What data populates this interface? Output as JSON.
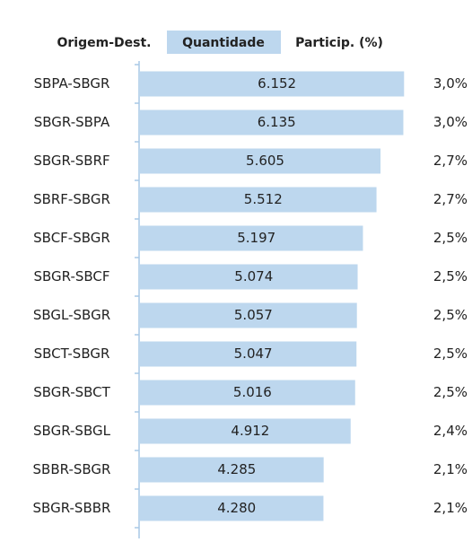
{
  "chart_data": {
    "type": "bar",
    "orientation": "horizontal",
    "headers": [
      "Origem-Dest.",
      "Quantidade",
      "Particip. (%)"
    ],
    "categories": [
      "SBPA-SBGR",
      "SBGR-SBPA",
      "SBGR-SBRF",
      "SBRF-SBGR",
      "SBCF-SBGR",
      "SBGR-SBCF",
      "SBGL-SBGR",
      "SBCT-SBGR",
      "SBGR-SBCT",
      "SBGR-SBGL",
      "SBBR-SBGR",
      "SBGR-SBBR"
    ],
    "values": [
      6152,
      6135,
      5605,
      5512,
      5197,
      5074,
      5057,
      5047,
      5016,
      4912,
      4285,
      4280
    ],
    "value_labels": [
      "6.152",
      "6.135",
      "5.605",
      "5.512",
      "5.197",
      "5.074",
      "5.057",
      "5.047",
      "5.016",
      "4.912",
      "4.285",
      "4.280"
    ],
    "share": {
      "values": [
        3.0,
        3.0,
        2.7,
        2.7,
        2.5,
        2.5,
        2.5,
        2.5,
        2.5,
        2.4,
        2.1,
        2.1
      ],
      "value_labels": [
        "3,0%",
        "3,0%",
        "2,7%",
        "2,7%",
        "2,5%",
        "2,5%",
        "2,5%",
        "2,5%",
        "2,5%",
        "2,4%",
        "2,1%",
        "2,1%"
      ]
    },
    "color": "#bdd7ee",
    "xlim": [
      0,
      6500
    ]
  }
}
